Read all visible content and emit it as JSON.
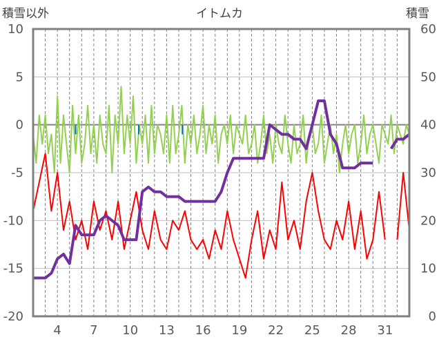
{
  "chart_data": {
    "type": "line",
    "title": "イトムカ",
    "y_left_label": "積雪以外",
    "y_right_label": "積雪",
    "y_left_ticks": [
      "10",
      "5",
      "0",
      "-5",
      "-10",
      "-15",
      "-20"
    ],
    "y_right_ticks": [
      "60",
      "50",
      "40",
      "30",
      "20",
      "10",
      "0"
    ],
    "x_ticks": [
      "4",
      "7",
      "10",
      "13",
      "16",
      "19",
      "22",
      "25",
      "28",
      "31"
    ],
    "ylim_left": [
      -20,
      10
    ],
    "ylim_right": [
      0,
      60
    ],
    "xlim": [
      2,
      33
    ],
    "grid_x": "dashed-vertical",
    "grid_y": "solid-horizontal",
    "colors": {
      "temperature": "#ff0000",
      "precipitation": "#92d050",
      "sunshine": "#0070c0",
      "snow_depth": "#7030a0",
      "zero_line": "#808080",
      "frame": "#808080"
    },
    "series": [
      {
        "axis": "left",
        "color": "#ff0000",
        "x": [
          2.0,
          2.5,
          3.0,
          3.5,
          4.0,
          4.5,
          5.0,
          5.5,
          6.0,
          6.5,
          7.0,
          7.5,
          8.0,
          8.5,
          9.0,
          9.5,
          10.0,
          10.5,
          11.0,
          11.5,
          12.0,
          12.5,
          13.0,
          13.5,
          14.0,
          14.5,
          15.0,
          15.5,
          16.0,
          16.5,
          17.0,
          17.5,
          18.0,
          18.5,
          19.0,
          19.5,
          20.0,
          20.5,
          21.0,
          21.5,
          22.0,
          22.5,
          23.0,
          23.5,
          24.0,
          24.5,
          25.0,
          25.5,
          26.0,
          26.5,
          27.0,
          27.5,
          28.0,
          28.5,
          29.0,
          29.5,
          30.0,
          30.5,
          31.0,
          31.5,
          32.0,
          32.5,
          33.0
        ],
        "values": [
          -9,
          -6,
          -3,
          -9,
          -5,
          -11,
          -8,
          -12,
          -10,
          -13,
          -8,
          -11,
          -9,
          -12,
          -8,
          -13,
          -10,
          -7,
          -11,
          -13,
          -9,
          -12,
          -13,
          -10,
          -11,
          -9,
          -12,
          -13,
          -12,
          -14,
          -11,
          -13,
          -9,
          -12,
          -14,
          -16,
          -12,
          -9,
          -14,
          -11,
          -13,
          -6,
          -12,
          -10,
          -13,
          -8,
          -5,
          -9,
          -12,
          -13,
          -10,
          -12,
          -8,
          -13,
          -9,
          -14,
          -12,
          -7,
          -12,
          -13,
          -12,
          -5,
          -11
        ],
        "segments": [
          [
            0,
            58
          ],
          [
            60,
            62
          ]
        ]
      },
      {
        "axis": "left",
        "color": "#92d050",
        "x": [
          2.0,
          2.25,
          2.5,
          2.75,
          3.0,
          3.25,
          3.5,
          3.75,
          4.0,
          4.25,
          4.5,
          4.75,
          5.0,
          5.25,
          5.5,
          5.75,
          6.0,
          6.25,
          6.5,
          6.75,
          7.0,
          7.25,
          7.5,
          7.75,
          8.0,
          8.25,
          8.5,
          8.75,
          9.0,
          9.25,
          9.5,
          9.75,
          10.0,
          10.25,
          10.5,
          10.75,
          11.0,
          11.25,
          11.5,
          11.75,
          12.0,
          12.25,
          12.5,
          12.75,
          13.0,
          13.25,
          13.5,
          13.75,
          14.0,
          14.25,
          14.5,
          14.75,
          15.0,
          15.25,
          15.5,
          15.75,
          16.0,
          16.25,
          16.5,
          16.75,
          17.0,
          17.25,
          17.5,
          17.75,
          18.0,
          18.25,
          18.5,
          18.75,
          19.0,
          19.25,
          19.5,
          19.75,
          20.0,
          20.25,
          20.5,
          20.75,
          21.0,
          21.25,
          21.5,
          21.75,
          22.0,
          22.25,
          22.5,
          22.75,
          23.0,
          23.25,
          23.5,
          23.75,
          24.0,
          24.25,
          24.5,
          24.75,
          25.0,
          25.25,
          25.5,
          25.75,
          26.0,
          26.25,
          26.5,
          26.75,
          27.0,
          27.25,
          27.5,
          27.75,
          28.0,
          28.25,
          28.5,
          28.75,
          29.0,
          29.25,
          29.5,
          29.75,
          30.0,
          30.25,
          30.5,
          30.75,
          31.0,
          31.25,
          31.5,
          31.75,
          32.0,
          32.25,
          32.5,
          32.75,
          33.0
        ],
        "values": [
          -1,
          -4,
          1,
          -2,
          1,
          -3,
          -1,
          -5,
          3,
          -4,
          1,
          -2,
          -5,
          2,
          -3,
          1,
          -4,
          -2,
          2,
          -3,
          0,
          -4,
          1,
          -2,
          -3,
          2,
          -5,
          1,
          -2,
          4,
          -3,
          1,
          -2,
          3,
          -4,
          0,
          -2,
          1,
          -4,
          2,
          -3,
          0,
          -1,
          -3,
          1,
          -4,
          2,
          -3,
          -1,
          2,
          -4,
          0,
          -2,
          1,
          -3,
          -1,
          2,
          -3,
          0,
          -2,
          1,
          -4,
          -1,
          0,
          -2,
          1,
          -3,
          0,
          -1,
          -2,
          1,
          -3,
          -2,
          0,
          -4,
          -2,
          1,
          -3,
          -1,
          -4,
          0,
          -2,
          -3,
          1,
          -2,
          -4,
          0,
          -3,
          -2,
          1,
          -4,
          -1,
          0,
          -3,
          -2,
          1,
          -4,
          -2,
          0,
          -3,
          -1,
          -5,
          -2,
          0,
          -3,
          -1,
          0,
          -4,
          -2,
          1,
          -3,
          -1,
          0,
          -2,
          -4,
          0,
          -1,
          -2,
          1,
          -3,
          0,
          -1,
          -2,
          0,
          -1
        ],
        "segments": [
          [
            0,
            125
          ]
        ]
      },
      {
        "axis": "left",
        "color": "#0070c0",
        "x": [
          5.5,
          10.7,
          14.3
        ],
        "values": [
          -1,
          -1,
          -1
        ]
      },
      {
        "axis": "right",
        "color": "#7030a0",
        "x": [
          2.0,
          2.5,
          3.0,
          3.5,
          4.0,
          4.5,
          5.0,
          5.5,
          6.0,
          6.5,
          7.0,
          7.5,
          8.0,
          8.5,
          9.0,
          9.5,
          10.0,
          10.5,
          11.0,
          11.5,
          12.0,
          12.5,
          13.0,
          13.5,
          14.0,
          14.5,
          15.0,
          15.5,
          16.0,
          16.5,
          17.0,
          17.5,
          18.0,
          18.5,
          19.0,
          19.5,
          20.0,
          20.5,
          21.0,
          21.5,
          22.0,
          22.5,
          23.0,
          23.5,
          24.0,
          24.5,
          25.0,
          25.5,
          26.0,
          26.5,
          27.0,
          27.5,
          28.0,
          28.5,
          29.0,
          29.5,
          30.0,
          30.5,
          31.0,
          31.5,
          32.0,
          32.5,
          33.0
        ],
        "values": [
          8,
          8,
          8,
          9,
          12,
          13,
          11,
          19,
          17,
          17,
          17,
          20,
          21,
          20,
          19,
          16,
          16,
          16,
          26,
          27,
          26,
          26,
          25,
          25,
          25,
          24,
          24,
          24,
          24,
          24,
          24,
          26,
          30,
          33,
          33,
          33,
          33,
          33,
          33,
          40,
          39,
          38,
          38,
          37,
          37,
          35,
          40,
          45,
          45,
          38,
          36,
          31,
          31,
          31,
          32,
          32,
          32,
          32,
          35,
          35,
          37,
          37,
          38
        ],
        "segments": [
          [
            0,
            56
          ],
          [
            59,
            62
          ]
        ]
      }
    ]
  }
}
